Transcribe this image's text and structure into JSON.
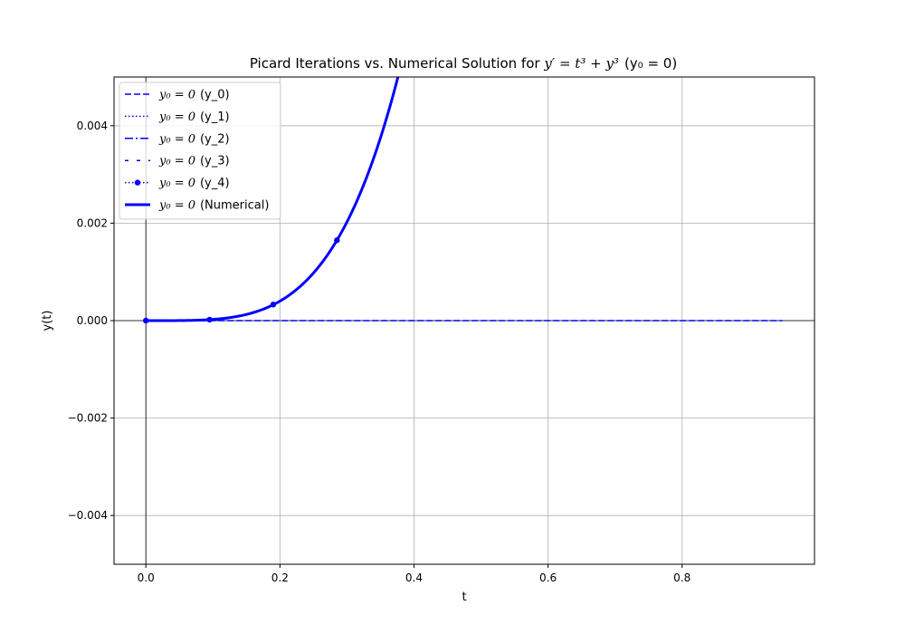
{
  "chart_data": {
    "type": "line",
    "title": {
      "prefix": "Picard Iterations vs. Numerical Solution for ",
      "equation": "y′ = t³ + y³",
      "condition": "(y₀ = 0)"
    },
    "xlabel": "t",
    "ylabel": "y(t)",
    "xlim": [
      -0.0475,
      0.9975
    ],
    "ylim": [
      -0.005,
      0.005
    ],
    "xticks": [
      0.0,
      0.2,
      0.4,
      0.6,
      0.8
    ],
    "xtick_labels": [
      "0.0",
      "0.2",
      "0.4",
      "0.6",
      "0.8"
    ],
    "yticks": [
      -0.004,
      -0.002,
      0.0,
      0.002,
      0.004
    ],
    "ytick_labels": [
      "−0.004",
      "−0.002",
      "0.000",
      "0.002",
      "0.004"
    ],
    "grid": true,
    "reference_lines": {
      "x": 0,
      "y": 0
    },
    "legend_position": "upper-left",
    "color": "#0000ff",
    "x_range": [
      0,
      0.95
    ],
    "series": [
      {
        "name": "y_0",
        "legend_prefix": "y₀ = 0",
        "legend_suffix": "(y_0)",
        "style": "dashed",
        "formula": "0",
        "points": [
          [
            0,
            0
          ],
          [
            0.95,
            0
          ]
        ]
      },
      {
        "name": "y_1",
        "legend_prefix": "y₀ = 0",
        "legend_suffix": "(y_1)",
        "style": "dotted",
        "formula": "t^4/4",
        "points": [
          [
            0,
            0
          ],
          [
            0.1,
            2.5e-05
          ],
          [
            0.2,
            0.0004
          ],
          [
            0.3,
            0.002
          ],
          [
            0.35,
            0.0038
          ],
          [
            0.38,
            0.0052
          ]
        ]
      },
      {
        "name": "y_2",
        "legend_prefix": "y₀ = 0",
        "legend_suffix": "(y_2)",
        "style": "dashdot",
        "formula": "t^4/4",
        "points": [
          [
            0,
            0
          ],
          [
            0.1,
            2.5e-05
          ],
          [
            0.2,
            0.0004
          ],
          [
            0.3,
            0.002
          ],
          [
            0.35,
            0.0038
          ],
          [
            0.38,
            0.0052
          ]
        ]
      },
      {
        "name": "y_3",
        "legend_prefix": "y₀ = 0",
        "legend_suffix": "(y_3)",
        "style": "loosely-dashed",
        "formula": "t^4/4",
        "points": [
          [
            0,
            0
          ],
          [
            0.1,
            2.5e-05
          ],
          [
            0.2,
            0.0004
          ],
          [
            0.3,
            0.002
          ],
          [
            0.35,
            0.0038
          ],
          [
            0.38,
            0.0052
          ]
        ]
      },
      {
        "name": "y_4",
        "legend_prefix": "y₀ = 0",
        "legend_suffix": "(y_4)",
        "style": "dotted-markers",
        "formula": "t^4/4",
        "points": [
          [
            0,
            0
          ],
          [
            0.1,
            2.5e-05
          ],
          [
            0.2,
            0.0004
          ],
          [
            0.3,
            0.002
          ],
          [
            0.35,
            0.0038
          ],
          [
            0.38,
            0.0052
          ]
        ],
        "markers": [
          [
            0,
            0
          ],
          [
            0.095,
            2e-05
          ],
          [
            0.19,
            0.00033
          ],
          [
            0.285,
            0.00165
          ]
        ]
      },
      {
        "name": "Numerical",
        "legend_prefix": "y₀ = 0",
        "legend_suffix": "(Numerical)",
        "style": "solid-thick",
        "formula": "t^4/4",
        "points": [
          [
            0,
            0
          ],
          [
            0.1,
            2.5e-05
          ],
          [
            0.2,
            0.0004
          ],
          [
            0.3,
            0.002
          ],
          [
            0.35,
            0.0038
          ],
          [
            0.38,
            0.0052
          ]
        ]
      }
    ]
  }
}
